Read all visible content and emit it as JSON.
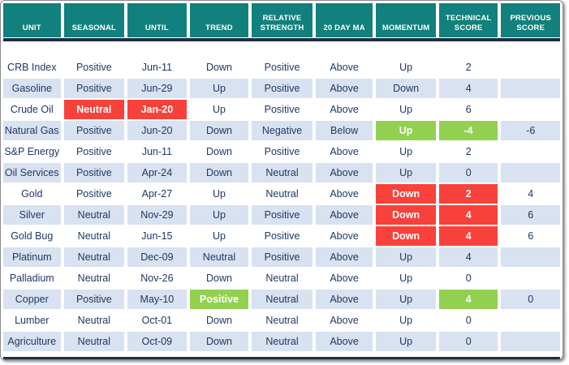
{
  "colors": {
    "header_bg": "#12807C",
    "header_text": "#FFFFFF",
    "divider_navy": "#1F2F43",
    "row_band_blue": "#D9E2F0",
    "row_white": "#FFFFFF",
    "text_navy": "#1F3864",
    "highlight_red": "#F8413A",
    "highlight_green": "#92D050"
  },
  "table": {
    "columns": [
      "UNIT",
      "SEASONAL",
      "UNTIL",
      "TREND",
      "RELATIVE STRENGTH",
      "20 DAY MA",
      "MOMENTUM",
      "TECHNICAL SCORE",
      "PREVIOUS SCORE"
    ],
    "column_keys": [
      "unit",
      "seasonal",
      "until",
      "trend",
      "relative-strength",
      "20-day-ma",
      "momentum",
      "technical-score",
      "previous-score"
    ],
    "rows": [
      {
        "cells": [
          "CRB Index",
          "Positive",
          "Jun-11",
          "Down",
          "Positive",
          "Above",
          "Up",
          "2",
          ""
        ],
        "hl": {}
      },
      {
        "cells": [
          "Gasoline",
          "Positive",
          "Jun-29",
          "Up",
          "Positive",
          "Above",
          "Down",
          "4",
          ""
        ],
        "hl": {}
      },
      {
        "cells": [
          "Crude Oil",
          "Neutral",
          "Jan-20",
          "Up",
          "Positive",
          "Above",
          "Up",
          "6",
          ""
        ],
        "hl": {
          "1": "red",
          "2": "red"
        }
      },
      {
        "cells": [
          "Natural Gas",
          "Positive",
          "Jun-20",
          "Down",
          "Negative",
          "Below",
          "Up",
          "-4",
          "-6"
        ],
        "hl": {
          "6": "green",
          "7": "green"
        }
      },
      {
        "cells": [
          "S&P Energy",
          "Positive",
          "Jun-11",
          "Down",
          "Positive",
          "Above",
          "Up",
          "2",
          ""
        ],
        "hl": {}
      },
      {
        "cells": [
          "Oil Services",
          "Positive",
          "Apr-24",
          "Down",
          "Neutral",
          "Above",
          "Up",
          "0",
          ""
        ],
        "hl": {}
      },
      {
        "cells": [
          "Gold",
          "Positive",
          "Apr-27",
          "Up",
          "Neutral",
          "Above",
          "Down",
          "2",
          "4"
        ],
        "hl": {
          "6": "red",
          "7": "red"
        }
      },
      {
        "cells": [
          "Silver",
          "Neutral",
          "Nov-29",
          "Up",
          "Positive",
          "Above",
          "Down",
          "4",
          "6"
        ],
        "hl": {
          "6": "red",
          "7": "red"
        }
      },
      {
        "cells": [
          "Gold Bug",
          "Neutral",
          "Jun-15",
          "Up",
          "Positive",
          "Above",
          "Down",
          "4",
          "6"
        ],
        "hl": {
          "6": "red",
          "7": "red"
        }
      },
      {
        "cells": [
          "Platinum",
          "Neutral",
          "Dec-09",
          "Neutral",
          "Positive",
          "Above",
          "Up",
          "4",
          ""
        ],
        "hl": {}
      },
      {
        "cells": [
          "Palladium",
          "Neutral",
          "Nov-26",
          "Down",
          "Neutral",
          "Above",
          "Up",
          "0",
          ""
        ],
        "hl": {}
      },
      {
        "cells": [
          "Copper",
          "Positive",
          "May-10",
          "Positive",
          "Neutral",
          "Above",
          "Up",
          "4",
          "0"
        ],
        "hl": {
          "3": "green",
          "7": "green"
        }
      },
      {
        "cells": [
          "Lumber",
          "Neutral",
          "Oct-01",
          "Down",
          "Neutral",
          "Above",
          "Up",
          "0",
          ""
        ],
        "hl": {}
      },
      {
        "cells": [
          "Agriculture",
          "Neutral",
          "Oct-09",
          "Down",
          "Neutral",
          "Above",
          "Up",
          "0",
          ""
        ],
        "hl": {}
      }
    ]
  }
}
